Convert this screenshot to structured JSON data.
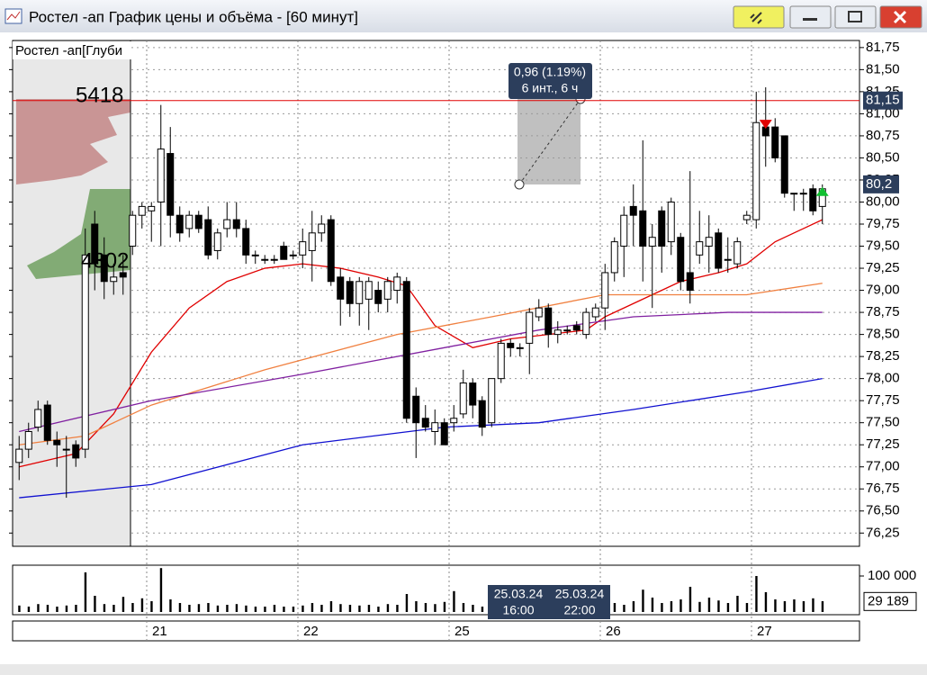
{
  "window": {
    "title": "Ростел -ап График цены и объёма - [60 минут]"
  },
  "chart_data": [
    {
      "type": "candlestick",
      "label": "Ростел -ап[Глуби",
      "categories": [
        null,
        null,
        null,
        null,
        null,
        null,
        null,
        null,
        null,
        null,
        null,
        null,
        null,
        null,
        "21",
        null,
        null,
        null,
        null,
        null,
        null,
        null,
        null,
        null,
        null,
        null,
        null,
        null,
        null,
        null,
        "22",
        null,
        null,
        null,
        null,
        null,
        null,
        null,
        null,
        null,
        null,
        null,
        null,
        null,
        null,
        null,
        "25",
        null,
        null,
        null,
        null,
        null,
        null,
        null,
        null,
        null,
        null,
        null,
        null,
        null,
        null,
        null,
        "26",
        null,
        null,
        null,
        null,
        null,
        null,
        null,
        null,
        null,
        null,
        null,
        null,
        null,
        null,
        null,
        "27",
        null,
        null,
        null,
        null,
        null,
        null,
        null
      ],
      "open": [
        77.05,
        77.2,
        77.45,
        77.7,
        77.3,
        77.2,
        77.25,
        77.2,
        79.75,
        79.4,
        79.1,
        79.2,
        79.5,
        79.85,
        79.9,
        80.0,
        80.55,
        79.85,
        79.7,
        79.85,
        79.8,
        79.45,
        79.7,
        79.8,
        79.7,
        79.4,
        79.35,
        79.35,
        79.5,
        79.4,
        79.4,
        79.45,
        79.65,
        79.8,
        79.15,
        79.1,
        78.85,
        78.9,
        79.0,
        78.9,
        79.0,
        79.1,
        77.8,
        77.55,
        77.4,
        77.5,
        77.5,
        77.6,
        77.95,
        77.75,
        77.5,
        78.0,
        78.4,
        78.35,
        78.4,
        78.7,
        78.8,
        78.5,
        78.55,
        78.6,
        78.5,
        78.7,
        78.8,
        79.2,
        79.5,
        79.95,
        79.9,
        79.5,
        79.9,
        79.55,
        79.6,
        79.2,
        79.4,
        79.5,
        79.65,
        79.35,
        79.3,
        79.8,
        79.8,
        80.85,
        80.85,
        80.75,
        80.1,
        80.1,
        80.15,
        79.95
      ],
      "high": [
        77.35,
        77.5,
        77.75,
        77.75,
        77.4,
        77.35,
        77.3,
        79.7,
        79.9,
        79.6,
        79.3,
        79.4,
        79.9,
        80.0,
        80.0,
        81.1,
        80.85,
        79.95,
        79.9,
        79.9,
        79.95,
        79.7,
        80.0,
        80.0,
        79.8,
        79.45,
        79.4,
        79.4,
        79.55,
        79.45,
        79.7,
        79.9,
        79.85,
        79.85,
        79.25,
        79.15,
        79.15,
        79.15,
        79.1,
        79.15,
        79.2,
        79.15,
        77.9,
        77.7,
        77.65,
        77.55,
        77.7,
        78.1,
        78.0,
        77.8,
        78.0,
        78.45,
        78.45,
        78.4,
        78.8,
        78.9,
        78.85,
        78.65,
        78.6,
        78.65,
        78.8,
        78.85,
        79.3,
        79.6,
        79.95,
        80.2,
        80.7,
        79.75,
        79.95,
        80.05,
        79.65,
        80.35,
        79.9,
        79.85,
        79.7,
        79.6,
        79.6,
        79.9,
        81.25,
        81.3,
        80.95,
        80.75,
        80.1,
        80.15,
        80.2,
        80.2
      ],
      "low": [
        76.85,
        77.1,
        77.4,
        77.25,
        77.0,
        76.65,
        77.0,
        77.1,
        79.0,
        78.9,
        78.95,
        78.95,
        79.4,
        79.7,
        79.55,
        79.5,
        79.6,
        79.55,
        79.6,
        79.65,
        79.35,
        79.35,
        79.6,
        79.6,
        79.3,
        79.3,
        79.3,
        79.3,
        79.35,
        79.35,
        79.25,
        79.1,
        79.55,
        79.05,
        78.6,
        78.7,
        78.6,
        78.55,
        78.75,
        78.75,
        78.85,
        77.5,
        77.1,
        77.4,
        77.25,
        77.25,
        77.4,
        77.55,
        77.55,
        77.35,
        77.45,
        77.95,
        78.25,
        78.25,
        78.05,
        78.65,
        78.35,
        78.4,
        78.5,
        78.5,
        78.45,
        78.65,
        78.55,
        79.1,
        79.15,
        79.5,
        79.1,
        78.8,
        79.2,
        79.4,
        79.0,
        78.85,
        79.3,
        79.2,
        79.2,
        79.2,
        79.25,
        79.75,
        79.7,
        80.4,
        80.45,
        80.05,
        79.9,
        79.9,
        79.85,
        79.75
      ],
      "close": [
        77.2,
        77.4,
        77.65,
        77.3,
        77.25,
        77.2,
        77.1,
        79.4,
        79.3,
        79.1,
        79.15,
        79.15,
        79.85,
        79.95,
        79.95,
        80.6,
        79.85,
        79.65,
        79.85,
        79.7,
        79.4,
        79.65,
        79.8,
        79.7,
        79.4,
        79.4,
        79.35,
        79.35,
        79.35,
        79.4,
        79.55,
        79.65,
        79.75,
        79.1,
        78.9,
        78.85,
        79.1,
        79.1,
        78.85,
        79.1,
        79.15,
        77.55,
        77.5,
        77.45,
        77.5,
        77.25,
        77.55,
        77.95,
        77.7,
        77.45,
        78.0,
        78.4,
        78.35,
        78.35,
        78.75,
        78.8,
        78.5,
        78.55,
        78.55,
        78.55,
        78.75,
        78.8,
        79.2,
        79.55,
        79.85,
        79.85,
        79.5,
        79.6,
        79.5,
        80.0,
        79.1,
        79.0,
        79.55,
        79.6,
        79.25,
        79.35,
        79.55,
        79.85,
        80.9,
        80.75,
        80.5,
        80.1,
        80.1,
        80.1,
        79.9,
        80.15
      ],
      "lines": [
        {
          "color": "#e00000",
          "x": [
            0,
            6,
            10,
            14,
            18,
            22,
            26,
            30,
            34,
            38,
            41,
            44,
            48,
            52,
            56,
            60,
            62,
            66,
            70,
            74,
            77,
            80,
            83,
            85
          ],
          "values": [
            77.0,
            77.15,
            77.6,
            78.3,
            78.8,
            79.1,
            79.25,
            79.3,
            79.25,
            79.15,
            79.05,
            78.6,
            78.35,
            78.45,
            78.5,
            78.55,
            78.7,
            78.9,
            79.1,
            79.2,
            79.3,
            79.55,
            79.7,
            79.8
          ]
        },
        {
          "color": "#f08040",
          "x": [
            0,
            7,
            14,
            26,
            40,
            50,
            62,
            77,
            85
          ],
          "values": [
            77.25,
            77.35,
            77.7,
            78.1,
            78.5,
            78.7,
            78.95,
            78.95,
            79.08
          ]
        },
        {
          "color": "#8020a0",
          "x": [
            0,
            14,
            30,
            45,
            55,
            65,
            75,
            85
          ],
          "values": [
            77.4,
            77.75,
            78.05,
            78.35,
            78.55,
            78.7,
            78.75,
            78.75
          ]
        },
        {
          "color": "#1010d0",
          "x": [
            0,
            14,
            30,
            45,
            55,
            65,
            77,
            85
          ],
          "values": [
            76.65,
            76.8,
            77.25,
            77.45,
            77.5,
            77.65,
            77.85,
            78.0
          ]
        }
      ],
      "signals": [
        {
          "x": 79,
          "value": 80.85,
          "color": "#e00000",
          "direction": "down"
        },
        {
          "x": 85,
          "value": 80.15,
          "color": "#10c030",
          "direction": "up"
        }
      ],
      "levels": [
        {
          "value": 81.15,
          "label": "81,15",
          "color": "#e00000"
        }
      ],
      "last": {
        "value": 80.2,
        "label": "80,2"
      },
      "profile_labels": [
        5418,
        4302
      ],
      "measure": [
        "0,96 (1.19%)",
        "6 инт., 6 ч"
      ],
      "ylim": [
        76.1,
        81.83
      ],
      "yticks": [
        {
          "value": 76.25,
          "label": "76,25"
        },
        {
          "value": 76.5,
          "label": "76,50"
        },
        {
          "value": 76.75,
          "label": "76,75"
        },
        {
          "value": 77.0,
          "label": "77,00"
        },
        {
          "value": 77.25,
          "label": "77,25"
        },
        {
          "value": 77.5,
          "label": "77,50"
        },
        {
          "value": 77.75,
          "label": "77,75"
        },
        {
          "value": 78.0,
          "label": "78,00"
        },
        {
          "value": 78.25,
          "label": "78,25"
        },
        {
          "value": 78.5,
          "label": "78,50"
        },
        {
          "value": 78.75,
          "label": "78,75"
        },
        {
          "value": 79.0,
          "label": "79,00"
        },
        {
          "value": 79.25,
          "label": "79,25"
        },
        {
          "value": 79.5,
          "label": "79,50"
        },
        {
          "value": 79.75,
          "label": "79,75"
        },
        {
          "value": 80.0,
          "label": "80,00"
        },
        {
          "value": 80.25,
          "label": "80,25"
        },
        {
          "value": 80.5,
          "label": "80,50"
        },
        {
          "value": 80.75,
          "label": "80,75"
        },
        {
          "value": 81.0,
          "label": "81,00"
        },
        {
          "value": 81.25,
          "label": "81,25"
        },
        {
          "value": 81.5,
          "label": "81,50"
        },
        {
          "value": 81.75,
          "label": "81,75"
        }
      ],
      "grid": true
    },
    {
      "type": "bar",
      "color": "#000000",
      "values": [
        18000,
        15000,
        22000,
        20000,
        15000,
        18000,
        20000,
        110000,
        45000,
        22000,
        20000,
        42000,
        25000,
        38000,
        30000,
        122000,
        35000,
        25000,
        20000,
        22000,
        25000,
        18000,
        20000,
        22000,
        18000,
        15000,
        15000,
        20000,
        15000,
        15000,
        18000,
        25000,
        20000,
        30000,
        22000,
        20000,
        18000,
        20000,
        15000,
        22000,
        20000,
        50000,
        30000,
        25000,
        22000,
        28000,
        58000,
        25000,
        20000,
        15000,
        22000,
        20000,
        18000,
        22000,
        30000,
        18000,
        15000,
        20000,
        15000,
        18000,
        25000,
        30000,
        38000,
        25000,
        20000,
        30000,
        62000,
        40000,
        25000,
        30000,
        35000,
        70000,
        28000,
        40000,
        32000,
        25000,
        45000,
        25000,
        100000,
        55000,
        35000,
        30000,
        35000,
        30000,
        38000,
        30000
      ],
      "ylim": [
        0,
        125000
      ],
      "yticks": [
        {
          "value": 100000,
          "label": "100 000"
        }
      ],
      "last": {
        "value": 29189,
        "label": "29 189"
      },
      "cursor_dates": [
        [
          "25.03.24",
          "16:00"
        ],
        [
          "25.03.24",
          "22:00"
        ]
      ]
    }
  ]
}
